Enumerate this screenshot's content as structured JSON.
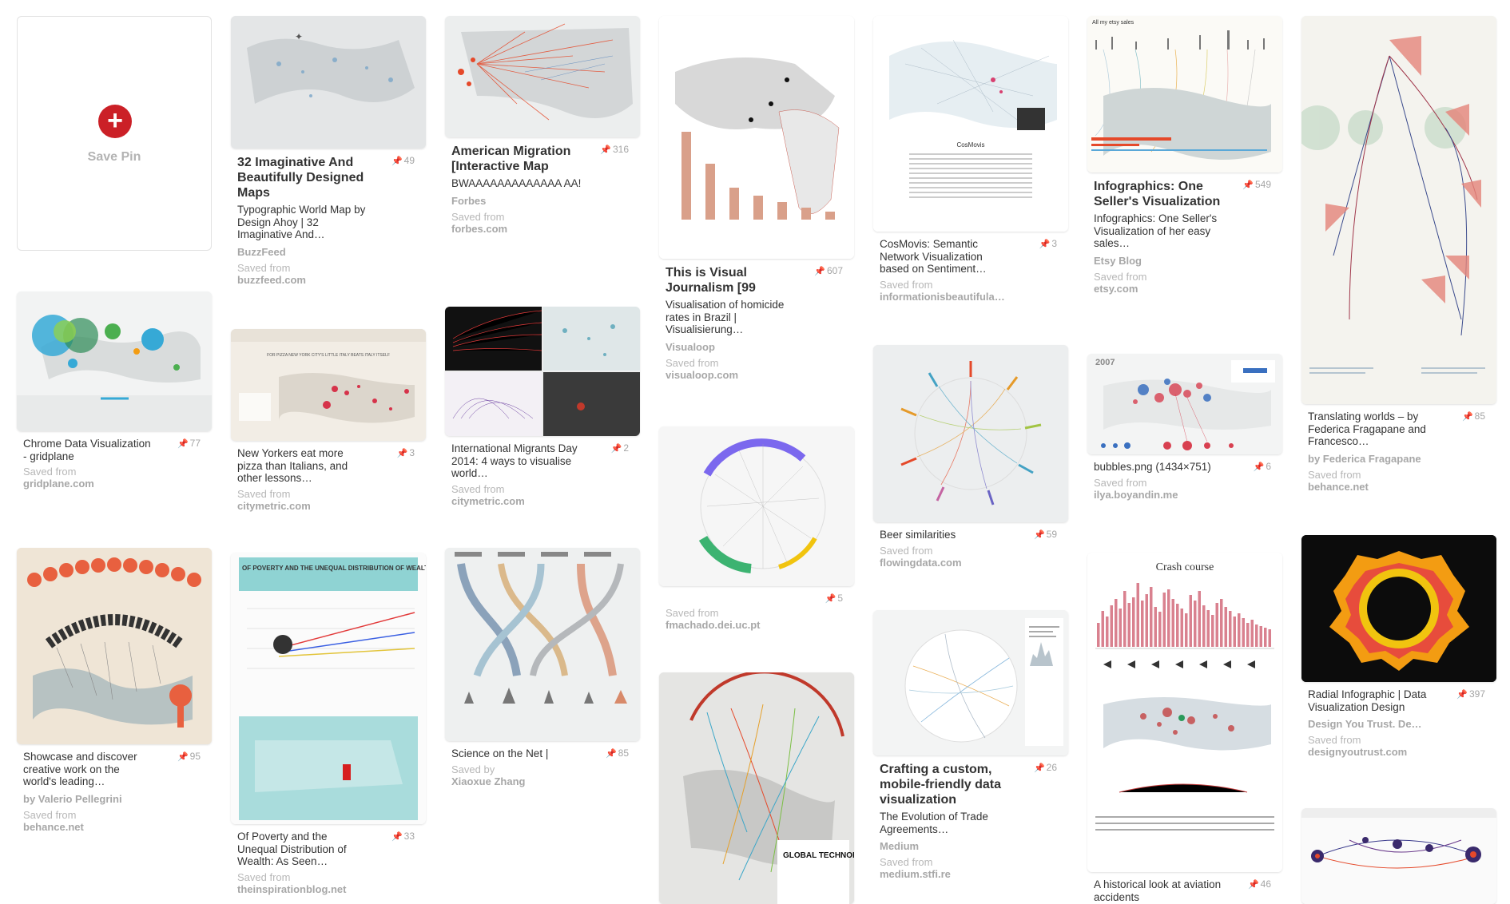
{
  "save_pin": {
    "label": "Save Pin",
    "icon": "+"
  },
  "pins": [
    {
      "title": "32 Imaginative And Beautifully Designed Maps",
      "desc": "Typographic World Map by Design Ahoy | 32 Imaginative And…",
      "count": "49",
      "attrib": "BuzzFeed",
      "saved_label": "Saved from",
      "domain": "buzzfeed.com"
    },
    {
      "title": "American Migration [Interactive Map",
      "desc": "BWAAAAAAAAAAAAA AA!",
      "count": "316",
      "attrib": "Forbes",
      "saved_label": "Saved from",
      "domain": "forbes.com"
    },
    {
      "title": "This is Visual Journalism [99",
      "desc": "Visualisation of homicide rates in Brazil | Visualisierung…",
      "count": "607",
      "attrib": "Visualoop",
      "saved_label": "Saved from",
      "domain": "visualoop.com"
    },
    {
      "title": "",
      "desc": "CosMovis: Semantic Network Visualization based on Sentiment…",
      "count": "3",
      "attrib": "",
      "saved_label": "Saved from",
      "domain": "informationisbeautifula…"
    },
    {
      "title": "Infographics: One Seller's Visualization",
      "desc": "Infographics: One Seller's Visualization of her easy sales…",
      "count": "549",
      "attrib": "Etsy Blog",
      "saved_label": "Saved from",
      "domain": "etsy.com"
    },
    {
      "title": "",
      "desc": "Translating worlds – by Federica Fragapane and Francesco…",
      "count": "85",
      "attrib": "by Federica Fragapane",
      "saved_label": "Saved from",
      "domain": "behance.net"
    },
    {
      "title": "",
      "desc": "Chrome Data Visualization - gridplane",
      "count": "77",
      "attrib": "",
      "saved_label": "Saved from",
      "domain": "gridplane.com"
    },
    {
      "title": "",
      "desc": "New Yorkers eat more pizza than Italians, and other lessons…",
      "count": "3",
      "attrib": "",
      "saved_label": "Saved from",
      "domain": "citymetric.com"
    },
    {
      "title": "",
      "desc": "International Migrants Day 2014: 4 ways to visualise world…",
      "count": "2",
      "attrib": "",
      "saved_label": "Saved from",
      "domain": "citymetric.com"
    },
    {
      "title": "",
      "desc": "",
      "count": "5",
      "attrib": "",
      "saved_label": "Saved from",
      "domain": "fmachado.dei.uc.pt"
    },
    {
      "title": "",
      "desc": "Beer similarities",
      "count": "59",
      "attrib": "",
      "saved_label": "Saved from",
      "domain": "flowingdata.com"
    },
    {
      "title": "",
      "desc": "bubbles.png (1434×751)",
      "count": "6",
      "attrib": "",
      "saved_label": "Saved from",
      "domain": "ilya.boyandin.me"
    },
    {
      "title": "",
      "desc": "Radial Infographic | Data Visualization Design",
      "count": "397",
      "attrib": "Design You Trust. De…",
      "saved_label": "Saved from",
      "domain": "designyoutrust.com"
    },
    {
      "title": "",
      "desc": "Showcase and discover creative work on the world's leading…",
      "count": "95",
      "attrib": "by Valerio Pellegrini",
      "saved_label": "Saved from",
      "domain": "behance.net"
    },
    {
      "title": "",
      "desc": "Of Poverty and the Unequal Distribution of Wealth: As Seen…",
      "count": "33",
      "attrib": "",
      "saved_label": "Saved from",
      "domain": "theinspirationblog.net"
    },
    {
      "title": "",
      "desc": "Science on the Net |",
      "count": "85",
      "attrib": "",
      "saved_label": "Saved by",
      "domain": "Xiaoxue Zhang"
    },
    {
      "title": "Crafting a custom, mobile-friendly data visualization",
      "desc": "The Evolution of Trade Agreements…",
      "count": "26",
      "attrib": "Medium",
      "saved_label": "Saved from",
      "domain": "medium.stfi.re"
    },
    {
      "title": "",
      "desc": "A historical look at aviation accidents",
      "count": "46",
      "attrib": "",
      "saved_label": "",
      "domain": ""
    }
  ],
  "thumb_text": {
    "cosmovis": "CosMovis",
    "etsy": "All my etsy sales",
    "crash": "Crash course",
    "poverty": "OF POVERTY AND THE UNEQUAL DISTRIBUTION OF WEALTH",
    "bubbles_year": "2007",
    "global_tech": "GLOBAL TECHNOLOGY",
    "pizza": "FOR PIZZA NEW YORK CITY'S LITTLE ITALY BEATS ITALY ITSELF"
  },
  "colors": {
    "pin_red": "#cb2027",
    "muted": "#a7a7a7",
    "accent_orange": "#e8603f"
  }
}
